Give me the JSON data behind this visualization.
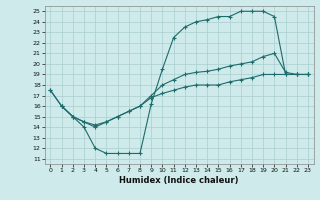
{
  "xlabel": "Humidex (Indice chaleur)",
  "bg_color": "#ceeaea",
  "line_color": "#1e6b6b",
  "grid_color": "#aacece",
  "xlim": [
    -0.5,
    23.5
  ],
  "ylim": [
    10.5,
    25.5
  ],
  "xticks": [
    0,
    1,
    2,
    3,
    4,
    5,
    6,
    7,
    8,
    9,
    10,
    11,
    12,
    13,
    14,
    15,
    16,
    17,
    18,
    19,
    20,
    21,
    22,
    23
  ],
  "yticks": [
    11,
    12,
    13,
    14,
    15,
    16,
    17,
    18,
    19,
    20,
    21,
    22,
    23,
    24,
    25
  ],
  "line1_x": [
    1,
    2,
    3,
    4,
    5,
    6,
    7,
    8,
    9,
    10,
    11,
    12,
    13,
    14,
    15,
    16,
    17,
    18,
    19,
    20,
    21,
    22,
    23
  ],
  "line1_y": [
    16,
    15,
    14,
    12,
    11.5,
    11.5,
    11.5,
    11.5,
    16.2,
    19.5,
    22.5,
    23.5,
    24,
    24.2,
    24.5,
    24.5,
    25,
    25,
    25,
    24.5,
    19,
    19,
    19
  ],
  "line2_x": [
    0,
    1,
    2,
    3,
    4,
    5,
    6,
    7,
    8,
    9,
    10,
    11,
    12,
    13,
    14,
    15,
    16,
    17,
    18,
    19,
    20,
    21,
    22,
    23
  ],
  "line2_y": [
    17.5,
    16,
    15,
    14.5,
    14,
    14.5,
    15,
    15.5,
    16,
    17,
    18,
    18.5,
    19,
    19.2,
    19.3,
    19.5,
    19.8,
    20,
    20.2,
    20.7,
    21,
    19.2,
    19,
    19
  ],
  "line3_x": [
    0,
    1,
    2,
    3,
    4,
    5,
    6,
    7,
    8,
    9,
    10,
    11,
    12,
    13,
    14,
    15,
    16,
    17,
    18,
    19,
    20,
    21,
    22,
    23
  ],
  "line3_y": [
    17.5,
    16,
    15,
    14.5,
    14.2,
    14.5,
    15,
    15.5,
    16,
    16.8,
    17.2,
    17.5,
    17.8,
    18,
    18,
    18,
    18.3,
    18.5,
    18.7,
    19,
    19,
    19,
    19,
    19
  ]
}
